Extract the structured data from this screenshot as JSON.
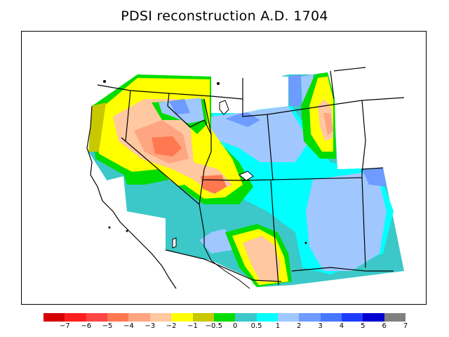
{
  "title": "PDSI reconstruction A.D. 1704",
  "legend": {
    "colors": [
      "#d40000",
      "#ff1e1e",
      "#ff4646",
      "#ff7850",
      "#ffa582",
      "#ffc8a0",
      "#ffff00",
      "#c8c800",
      "#00dc00",
      "#3cc8c8",
      "#00ffff",
      "#a0c8ff",
      "#6e9bff",
      "#4678ff",
      "#1e3cff",
      "#0000d2",
      "#808080"
    ],
    "labels": [
      "−7",
      "−6",
      "−5",
      "−4",
      "−3",
      "−2",
      "−1",
      "−0.5",
      "0",
      "0.5",
      "1",
      "2",
      "3",
      "4",
      "5",
      "6",
      "7"
    ],
    "colors_meaning": "PDSI class bins from driest (red) to wettest (dark blue), gray = missing"
  }
}
